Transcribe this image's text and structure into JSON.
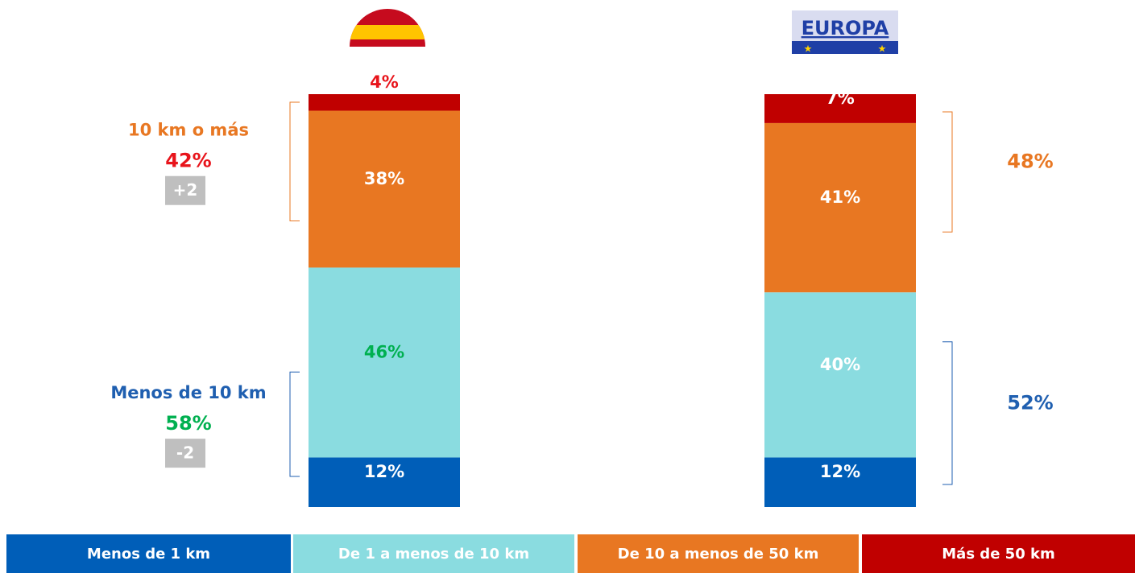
{
  "chart_data": {
    "type": "stacked_bar",
    "categories": [
      null,
      "EUROPA"
    ],
    "ylim": [
      0,
      100
    ],
    "series": [
      {
        "name": "Menos de 1 km",
        "color": "#005eb8",
        "values": [
          12,
          12
        ],
        "value_labels": [
          "12%",
          "12%"
        ],
        "label_colors": [
          "#ffffff",
          "#ffffff"
        ]
      },
      {
        "name": "De 1 a menos de 10 km",
        "color": "#8adce0",
        "values": [
          46,
          40
        ],
        "value_labels": [
          "46%",
          "40%"
        ],
        "label_colors": [
          "#00b050",
          "#ffffff"
        ]
      },
      {
        "name": "De 10 a menos de 50 km",
        "color": "#e87722",
        "values": [
          38,
          41
        ],
        "value_labels": [
          "38%",
          "41%"
        ],
        "label_colors": [
          "#ffffff",
          "#ffffff"
        ]
      },
      {
        "name": "Más de 50 km",
        "color": "#c00000",
        "values": [
          4,
          7
        ],
        "value_labels": [
          "4%",
          "7%"
        ],
        "label_colors": [
          "#e8141b",
          "#ffffff"
        ]
      }
    ],
    "groups": [
      {
        "bar": 0,
        "side": "left",
        "label": "10 km o más",
        "label_color": "#e87722",
        "value": 42,
        "value_label": "42%",
        "value_color": "#e8141b",
        "change": 2,
        "change_label": "+2",
        "from": 2,
        "to": 3
      },
      {
        "bar": 0,
        "side": "left",
        "label": "Menos de 10 km",
        "label_color": "#1f5fb0",
        "value": 58,
        "value_label": "58%",
        "value_color": "#00b050",
        "change": -2,
        "from": 0,
        "to": 1
      },
      {
        "bar": 1,
        "side": "right",
        "value": 48,
        "value_label": "48%",
        "value_color": "#e87722",
        "from": 2,
        "to": 3
      },
      {
        "bar": 1,
        "side": "right",
        "value": 52,
        "value_label": "52%",
        "value_color": "#1f5fb0",
        "from": 0,
        "to": 1
      }
    ]
  }
}
